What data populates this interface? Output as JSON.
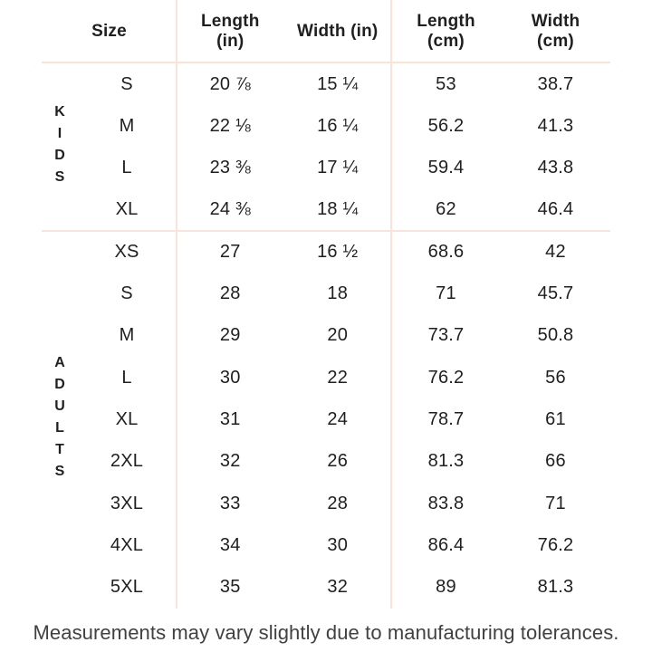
{
  "chart_data": {
    "type": "table",
    "columns": [
      "Size",
      "Length (in)",
      "Width (in)",
      "Length (cm)",
      "Width (cm)"
    ],
    "sections": [
      {
        "group": "KIDS",
        "rows": [
          [
            "S",
            "20 ⅞",
            "15 ¼",
            "53",
            "38.7"
          ],
          [
            "M",
            "22 ⅛",
            "16 ¼",
            "56.2",
            "41.3"
          ],
          [
            "L",
            "23 ⅜",
            "17 ¼",
            "59.4",
            "43.8"
          ],
          [
            "XL",
            "24 ⅜",
            "18 ¼",
            "62",
            "46.4"
          ]
        ]
      },
      {
        "group": "ADULTS",
        "rows": [
          [
            "XS",
            "27",
            "16 ½",
            "68.6",
            "42"
          ],
          [
            "S",
            "28",
            "18",
            "71",
            "45.7"
          ],
          [
            "M",
            "29",
            "20",
            "73.7",
            "50.8"
          ],
          [
            "L",
            "30",
            "22",
            "76.2",
            "56"
          ],
          [
            "XL",
            "31",
            "24",
            "78.7",
            "61"
          ],
          [
            "2XL",
            "32",
            "26",
            "81.3",
            "66"
          ],
          [
            "3XL",
            "33",
            "28",
            "83.8",
            "71"
          ],
          [
            "4XL",
            "34",
            "30",
            "86.4",
            "76.2"
          ],
          [
            "5XL",
            "35",
            "32",
            "89",
            "81.3"
          ]
        ]
      }
    ]
  },
  "header": {
    "size": "Size",
    "length_in": "Length\n(in)",
    "width_in": "Width (in)",
    "length_cm": "Length\n(cm)",
    "width_cm": "Width\n(cm)"
  },
  "footer": {
    "note": "Measurements may vary slightly due to manufacturing tolerances."
  },
  "colors": {
    "line": "#fbe3d8",
    "text": "#1f1f1f",
    "footer-text": "#414141",
    "background": "#ffffff"
  }
}
